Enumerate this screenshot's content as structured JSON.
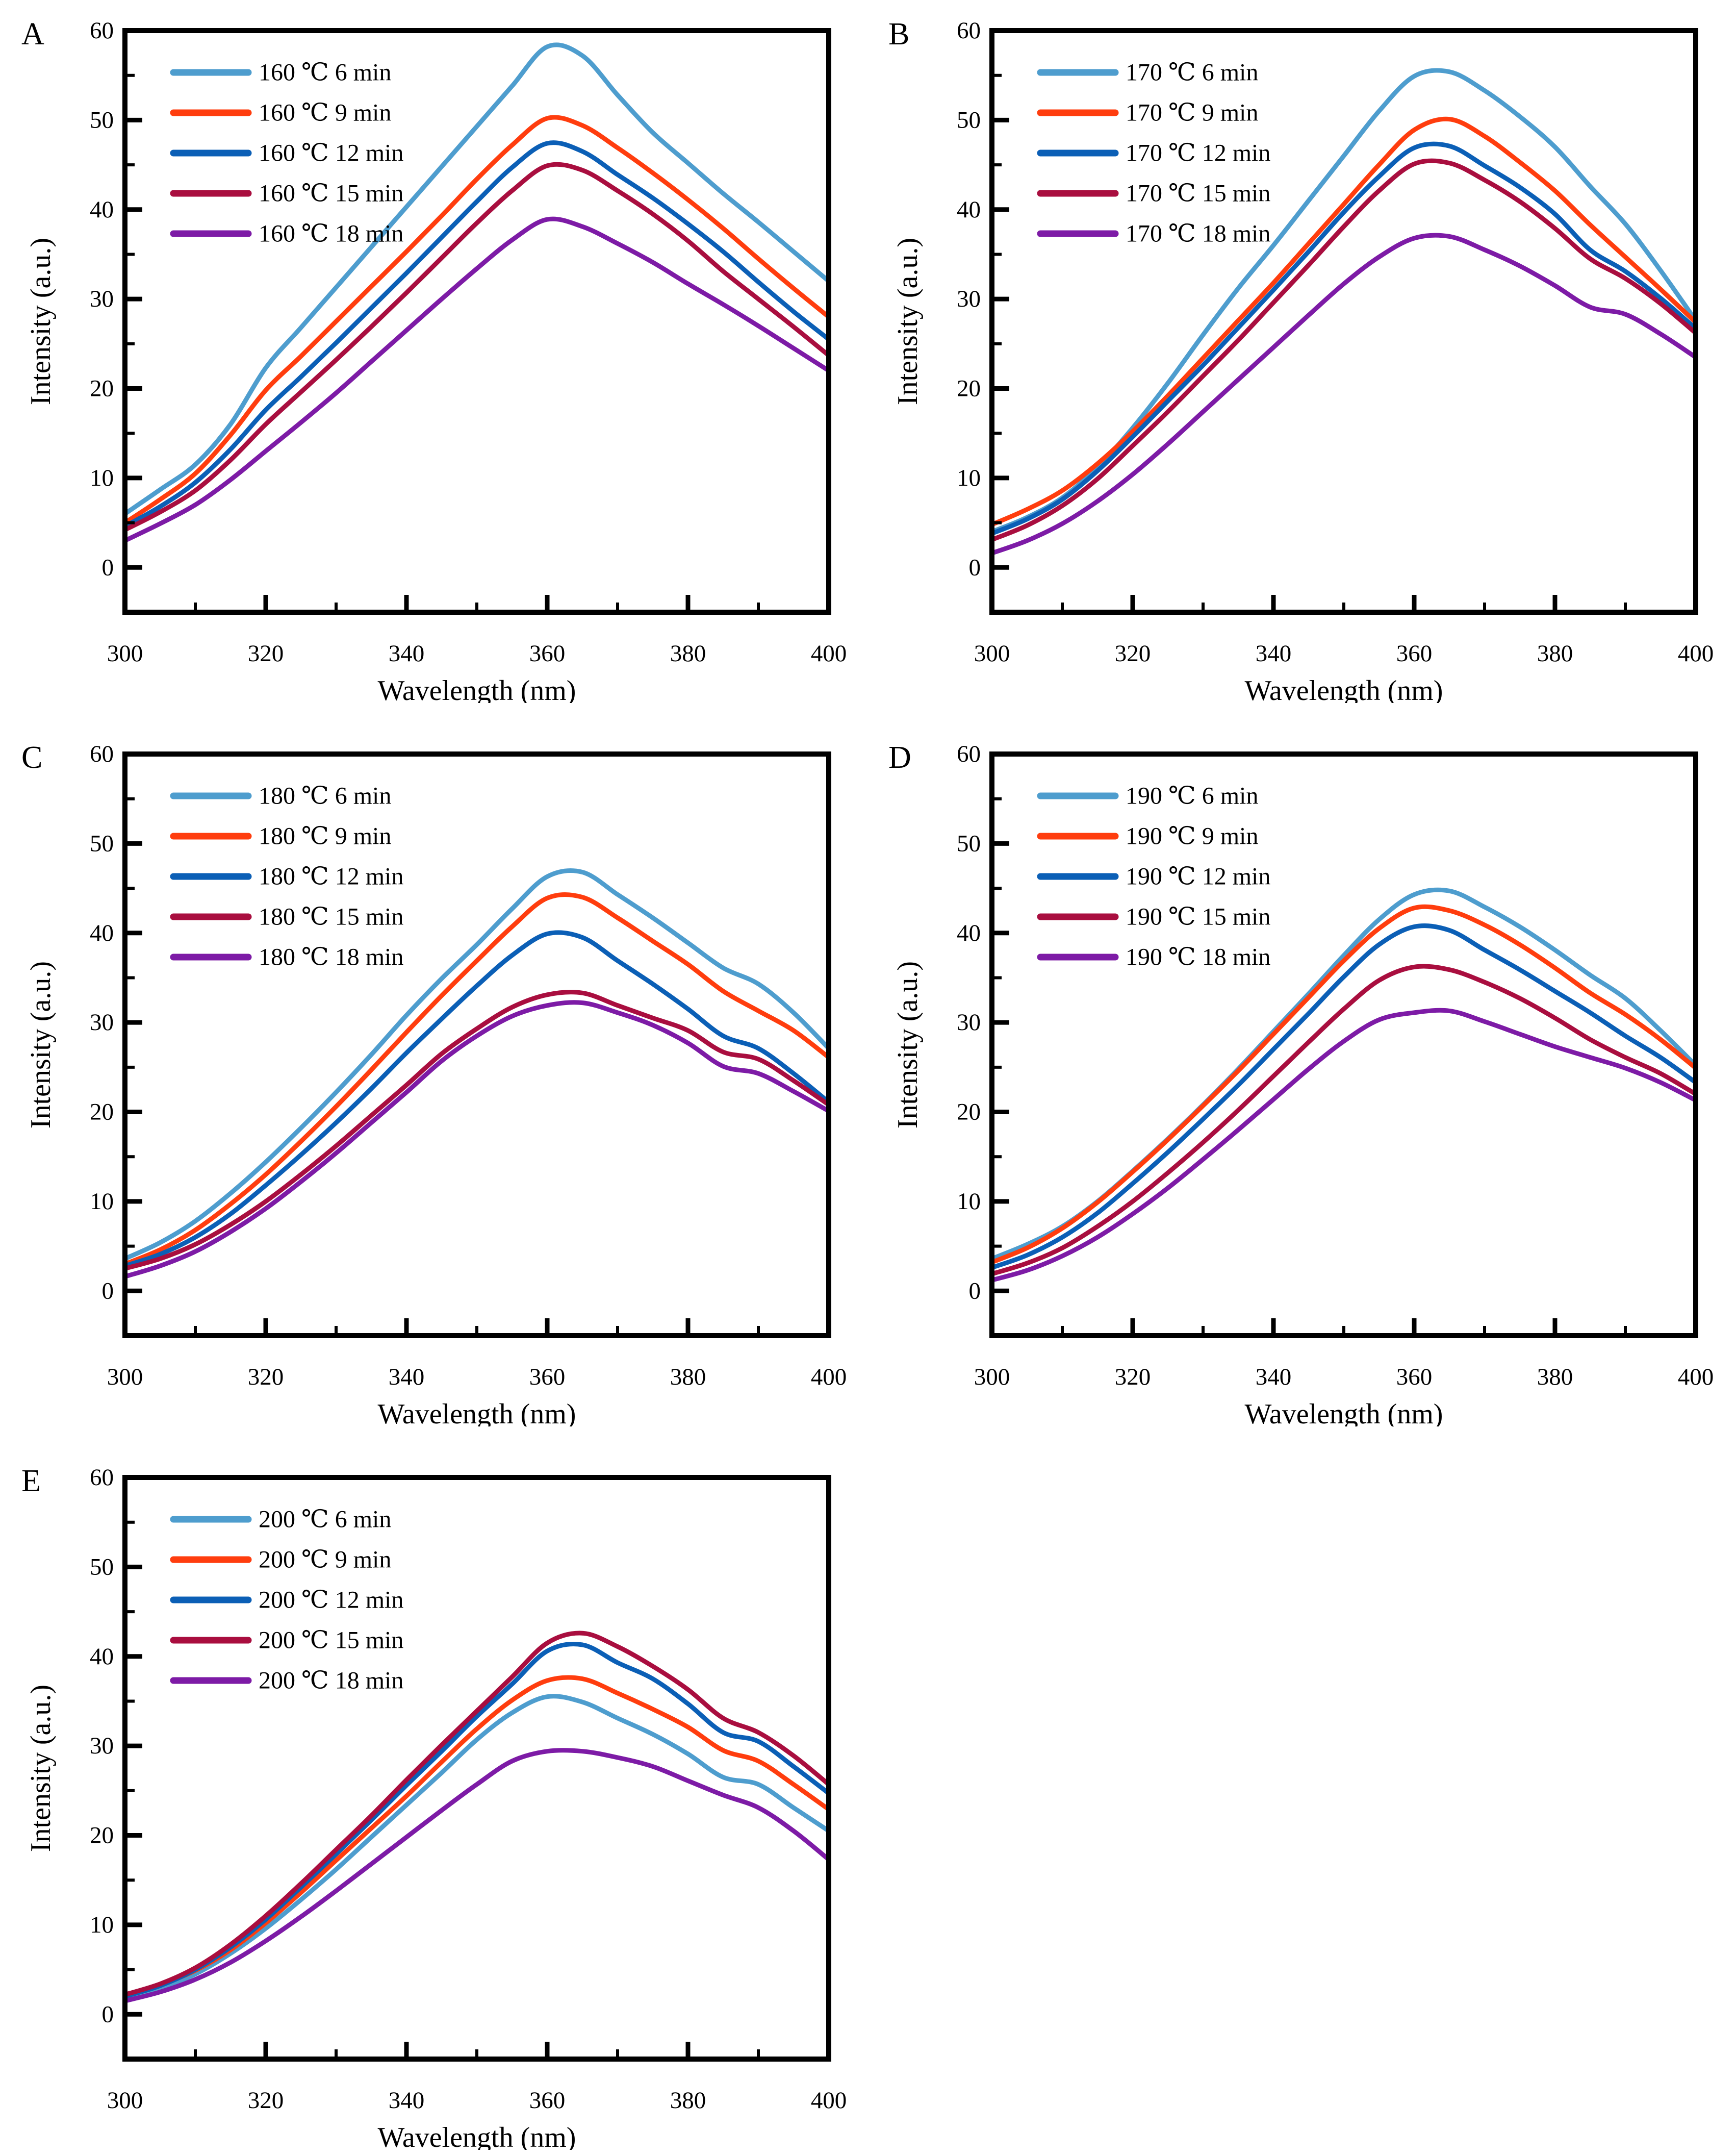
{
  "figure": {
    "description": "Fluorescence emission spectra at five temperatures and five heating times",
    "background": "#ffffff",
    "frame_color": "#000000",
    "series_colors": [
      "#4E9DCE",
      "#FF3D0E",
      "#0B5FB6",
      "#A90E3F",
      "#7D1BA6"
    ]
  },
  "axes": {
    "x_label": "Wavelength (nm)",
    "y_label": "Intensity (a.u.)",
    "xlim": [
      300,
      400
    ],
    "ylim": [
      -5,
      60
    ],
    "x_major": [
      300,
      320,
      340,
      360,
      380,
      400
    ],
    "x_minor": [
      310,
      330,
      350,
      370,
      390
    ],
    "y_major": [
      0,
      10,
      20,
      30,
      40,
      50,
      60
    ],
    "y_minor": [
      5,
      15,
      25,
      35,
      45,
      55
    ],
    "grid": "off",
    "legend_position": "upper-left"
  },
  "chart_data": [
    {
      "type": "line",
      "panel": "A",
      "temperature": "160 ℃",
      "x": [
        300,
        305,
        310,
        315,
        320,
        325,
        330,
        335,
        340,
        345,
        350,
        355,
        360,
        365,
        370,
        375,
        380,
        385,
        390,
        395,
        400
      ],
      "series": [
        {
          "name": "160 ℃  6 min",
          "color": "#4E9DCE",
          "values": [
            6.0,
            8.7,
            11.5,
            16.0,
            22.3,
            26.8,
            31.3,
            35.8,
            40.3,
            44.8,
            49.3,
            53.8,
            58.2,
            57.2,
            52.8,
            48.6,
            45.2,
            41.8,
            38.6,
            35.3,
            32.0
          ]
        },
        {
          "name": "160 ℃  9 min",
          "color": "#FF3D0E",
          "values": [
            5.0,
            7.6,
            10.5,
            14.8,
            19.8,
            23.6,
            27.5,
            31.4,
            35.3,
            39.3,
            43.4,
            47.2,
            50.2,
            49.4,
            46.9,
            44.1,
            41.1,
            37.9,
            34.5,
            31.2,
            28.0
          ]
        },
        {
          "name": "160 ℃  12 min",
          "color": "#0B5FB6",
          "values": [
            4.6,
            6.8,
            9.5,
            13.2,
            17.6,
            21.3,
            25.1,
            29.0,
            32.9,
            36.9,
            40.9,
            44.7,
            47.4,
            46.5,
            43.9,
            41.3,
            38.4,
            35.3,
            31.9,
            28.6,
            25.5
          ]
        },
        {
          "name": "160 ℃  15 min",
          "color": "#A90E3F",
          "values": [
            4.2,
            6.2,
            8.6,
            12.0,
            16.0,
            19.6,
            23.2,
            26.9,
            30.7,
            34.6,
            38.5,
            42.1,
            44.9,
            44.4,
            42.1,
            39.5,
            36.5,
            33.1,
            30.0,
            26.9,
            23.7
          ]
        },
        {
          "name": "160 ℃  18 min",
          "color": "#7D1BA6",
          "values": [
            3.0,
            4.9,
            7.0,
            9.8,
            13.0,
            16.2,
            19.5,
            23.0,
            26.5,
            30.0,
            33.4,
            36.6,
            38.9,
            38.1,
            36.2,
            34.1,
            31.7,
            29.4,
            27.0,
            24.5,
            22.0
          ]
        }
      ]
    },
    {
      "type": "line",
      "panel": "B",
      "temperature": "170 ℃",
      "x": [
        300,
        305,
        310,
        315,
        320,
        325,
        330,
        335,
        340,
        345,
        350,
        355,
        360,
        365,
        370,
        375,
        380,
        385,
        390,
        395,
        400
      ],
      "series": [
        {
          "name": "170 ℃  6 min",
          "color": "#4E9DCE",
          "values": [
            4.0,
            5.6,
            7.8,
            11.2,
            15.6,
            20.6,
            26.0,
            31.2,
            36.0,
            41.0,
            46.0,
            51.0,
            54.9,
            55.4,
            53.3,
            50.4,
            47.0,
            42.6,
            38.4,
            33.2,
            27.6
          ]
        },
        {
          "name": "170 ℃  9 min",
          "color": "#FF3D0E",
          "values": [
            4.8,
            6.5,
            8.6,
            11.6,
            15.2,
            19.2,
            23.4,
            27.6,
            31.8,
            36.2,
            40.6,
            45.0,
            48.9,
            50.1,
            48.2,
            45.3,
            42.1,
            38.3,
            34.7,
            31.1,
            27.4
          ]
        },
        {
          "name": "170 ℃  12 min",
          "color": "#0B5FB6",
          "values": [
            3.8,
            5.4,
            7.6,
            10.8,
            14.6,
            18.6,
            22.6,
            26.8,
            31.0,
            35.3,
            39.7,
            43.7,
            46.9,
            47.1,
            44.9,
            42.5,
            39.5,
            35.5,
            33.1,
            30.1,
            26.7
          ]
        },
        {
          "name": "170 ℃  15 min",
          "color": "#A90E3F",
          "values": [
            3.1,
            4.7,
            6.9,
            9.9,
            13.6,
            17.4,
            21.4,
            25.4,
            29.6,
            33.8,
            38.1,
            42.1,
            45.1,
            45.2,
            43.3,
            40.9,
            37.9,
            34.5,
            32.3,
            29.5,
            26.2
          ]
        },
        {
          "name": "170 ℃  18 min",
          "color": "#7D1BA6",
          "values": [
            1.6,
            3.0,
            4.9,
            7.4,
            10.4,
            13.8,
            17.4,
            21.0,
            24.6,
            28.2,
            31.7,
            34.7,
            36.8,
            37.0,
            35.5,
            33.7,
            31.5,
            29.1,
            28.3,
            26.1,
            23.5
          ]
        }
      ]
    },
    {
      "type": "line",
      "panel": "C",
      "temperature": "180 ℃",
      "x": [
        300,
        305,
        310,
        315,
        320,
        325,
        330,
        335,
        340,
        345,
        350,
        355,
        360,
        365,
        370,
        375,
        380,
        385,
        390,
        395,
        400
      ],
      "series": [
        {
          "name": "180 ℃  6 min",
          "color": "#4E9DCE",
          "values": [
            3.6,
            5.4,
            7.8,
            10.9,
            14.4,
            18.2,
            22.2,
            26.4,
            30.8,
            34.9,
            38.7,
            42.7,
            46.3,
            46.8,
            44.3,
            41.7,
            38.9,
            36.1,
            34.3,
            31.1,
            27.1
          ]
        },
        {
          "name": "180 ℃  9 min",
          "color": "#FF3D0E",
          "values": [
            3.0,
            4.6,
            6.8,
            9.7,
            13.0,
            16.7,
            20.6,
            24.7,
            28.9,
            33.0,
            36.9,
            40.7,
            43.9,
            44.0,
            41.7,
            39.1,
            36.5,
            33.5,
            31.3,
            29.1,
            26.1
          ]
        },
        {
          "name": "180 ℃  12 min",
          "color": "#0B5FB6",
          "values": [
            2.8,
            4.1,
            6.0,
            8.6,
            11.8,
            15.2,
            18.8,
            22.6,
            26.6,
            30.4,
            34.1,
            37.5,
            39.9,
            39.5,
            36.9,
            34.3,
            31.5,
            28.5,
            27.1,
            24.3,
            21.1
          ]
        },
        {
          "name": "180 ℃  15 min",
          "color": "#A90E3F",
          "values": [
            2.5,
            3.6,
            5.2,
            7.4,
            10.0,
            13.0,
            16.2,
            19.6,
            23.0,
            26.5,
            29.3,
            31.7,
            33.1,
            33.3,
            31.9,
            30.5,
            29.1,
            26.7,
            25.9,
            23.5,
            20.8
          ]
        },
        {
          "name": "180 ℃  18 min",
          "color": "#7D1BA6",
          "values": [
            1.6,
            2.8,
            4.4,
            6.6,
            9.2,
            12.2,
            15.4,
            18.8,
            22.2,
            25.7,
            28.5,
            30.7,
            31.9,
            32.2,
            31.1,
            29.7,
            27.7,
            25.1,
            24.3,
            22.3,
            20.1
          ]
        }
      ]
    },
    {
      "type": "line",
      "panel": "D",
      "temperature": "190 ℃",
      "x": [
        300,
        305,
        310,
        315,
        320,
        325,
        330,
        335,
        340,
        345,
        350,
        355,
        360,
        365,
        370,
        375,
        380,
        385,
        390,
        395,
        400
      ],
      "series": [
        {
          "name": "190 ℃  6 min",
          "color": "#4E9DCE",
          "values": [
            3.6,
            5.2,
            7.2,
            10.0,
            13.4,
            17.0,
            20.8,
            24.8,
            29.0,
            33.2,
            37.5,
            41.5,
            44.3,
            44.7,
            42.9,
            40.7,
            38.1,
            35.3,
            32.7,
            29.1,
            25.2
          ]
        },
        {
          "name": "190 ℃  9 min",
          "color": "#FF3D0E",
          "values": [
            3.2,
            4.8,
            7.0,
            9.9,
            13.3,
            16.9,
            20.7,
            24.6,
            28.7,
            32.8,
            36.9,
            40.5,
            42.8,
            42.5,
            40.9,
            38.7,
            36.1,
            33.3,
            30.9,
            28.1,
            24.9
          ]
        },
        {
          "name": "190 ℃  12 min",
          "color": "#0B5FB6",
          "values": [
            2.6,
            4.0,
            6.0,
            8.7,
            12.0,
            15.5,
            19.2,
            23.0,
            27.0,
            31.0,
            35.1,
            38.7,
            40.7,
            40.3,
            38.1,
            35.9,
            33.5,
            31.1,
            28.5,
            26.1,
            23.3
          ]
        },
        {
          "name": "190 ℃  15 min",
          "color": "#A90E3F",
          "values": [
            1.9,
            3.1,
            4.8,
            7.2,
            10.0,
            13.2,
            16.6,
            20.2,
            24.0,
            27.8,
            31.5,
            34.7,
            36.2,
            35.9,
            34.5,
            32.7,
            30.5,
            28.1,
            26.1,
            24.3,
            22.0
          ]
        },
        {
          "name": "190 ℃  18 min",
          "color": "#7D1BA6",
          "values": [
            1.2,
            2.3,
            3.9,
            6.0,
            8.6,
            11.5,
            14.7,
            18.0,
            21.4,
            24.8,
            27.9,
            30.3,
            31.1,
            31.3,
            30.1,
            28.7,
            27.3,
            26.1,
            24.9,
            23.3,
            21.3
          ]
        }
      ]
    },
    {
      "type": "line",
      "panel": "E",
      "temperature": "200 ℃",
      "x": [
        300,
        305,
        310,
        315,
        320,
        325,
        330,
        335,
        340,
        345,
        350,
        355,
        360,
        365,
        370,
        375,
        380,
        385,
        390,
        395,
        400
      ],
      "series": [
        {
          "name": "200 ℃  6 min",
          "color": "#4E9DCE",
          "values": [
            1.8,
            2.9,
            4.5,
            6.8,
            9.6,
            12.8,
            16.2,
            19.8,
            23.4,
            27.0,
            30.7,
            33.7,
            35.5,
            34.9,
            33.1,
            31.3,
            29.1,
            26.5,
            25.7,
            23.1,
            20.5
          ]
        },
        {
          "name": "200 ℃  9 min",
          "color": "#FF3D0E",
          "values": [
            2.2,
            3.3,
            4.9,
            7.2,
            10.2,
            13.6,
            17.2,
            20.8,
            24.4,
            28.2,
            31.9,
            35.1,
            37.3,
            37.5,
            35.9,
            34.1,
            32.1,
            29.5,
            28.3,
            25.7,
            22.9
          ]
        },
        {
          "name": "200 ℃  12 min",
          "color": "#0B5FB6",
          "values": [
            2.0,
            3.2,
            5.0,
            7.5,
            10.6,
            14.2,
            17.9,
            21.7,
            25.6,
            29.4,
            33.3,
            36.9,
            40.6,
            41.3,
            39.3,
            37.5,
            34.7,
            31.5,
            30.5,
            27.7,
            24.7
          ]
        },
        {
          "name": "200 ℃  15 min",
          "color": "#A90E3F",
          "values": [
            2.2,
            3.4,
            5.2,
            7.8,
            11.0,
            14.6,
            18.4,
            22.2,
            26.2,
            30.1,
            33.9,
            37.7,
            41.5,
            42.6,
            41.1,
            38.9,
            36.3,
            33.1,
            31.5,
            28.9,
            25.7
          ]
        },
        {
          "name": "200 ℃  18 min",
          "color": "#7D1BA6",
          "values": [
            1.5,
            2.5,
            3.9,
            5.8,
            8.2,
            10.9,
            13.8,
            16.8,
            19.8,
            22.8,
            25.7,
            28.3,
            29.4,
            29.4,
            28.7,
            27.7,
            26.1,
            24.5,
            23.1,
            20.5,
            17.3
          ]
        }
      ]
    }
  ]
}
